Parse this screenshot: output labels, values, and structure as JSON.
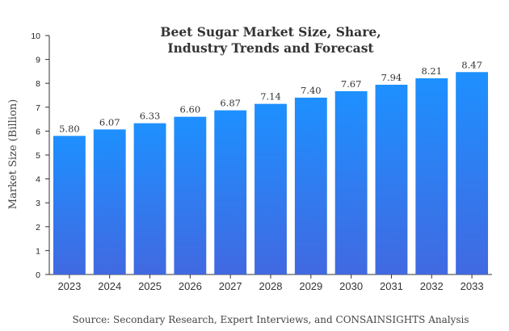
{
  "chart_data": {
    "type": "bar",
    "title_lines": [
      "Beet Sugar Market Size, Share,",
      "Industry Trends and Forecast"
    ],
    "xlabel": "",
    "ylabel": "Market Size (Billion)",
    "categories": [
      "2023",
      "2024",
      "2025",
      "2026",
      "2027",
      "2028",
      "2029",
      "2030",
      "2031",
      "2032",
      "2033"
    ],
    "values": [
      5.8,
      6.07,
      6.33,
      6.6,
      6.87,
      7.14,
      7.4,
      7.67,
      7.94,
      8.21,
      8.47
    ],
    "value_labels": [
      "5.80",
      "6.07",
      "6.33",
      "6.60",
      "6.87",
      "7.14",
      "7.40",
      "7.67",
      "7.94",
      "8.21",
      "8.47"
    ],
    "ylim": [
      0,
      10
    ],
    "yticks": [
      "0",
      "1",
      "2",
      "3",
      "4",
      "5",
      "6",
      "7",
      "8",
      "9",
      "10"
    ],
    "grid": false,
    "legend": "none",
    "bar_color_top": "#1e90ff",
    "bar_color_bottom": "#4169e1"
  },
  "source_note": "Source: Secondary Research, Expert Interviews, and CONSAINSIGHTS Analysis"
}
